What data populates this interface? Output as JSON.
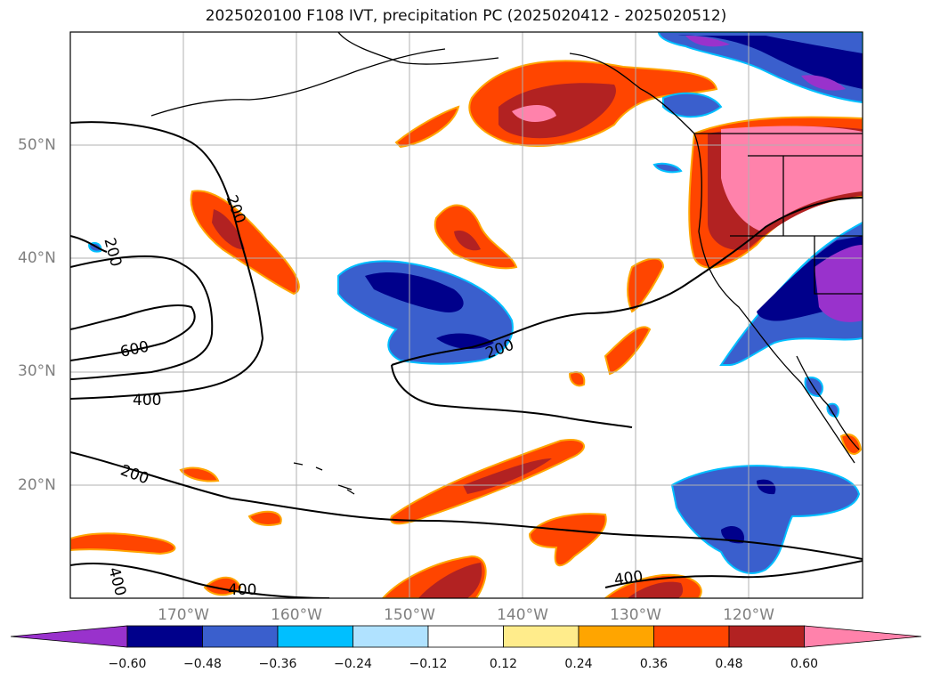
{
  "title": "2025020100 F108 IVT, precipitation PC (2025020412 - 2025020512)",
  "map": {
    "lat_labels": [
      "50°N",
      "40°N",
      "30°N",
      "20°N"
    ],
    "lon_labels": [
      "170°W",
      "160°W",
      "150°W",
      "140°W",
      "130°W",
      "120°W"
    ],
    "contour_labels": [
      "200",
      "200",
      "600",
      "400",
      "200",
      "200",
      "400",
      "400",
      "400"
    ]
  },
  "colorbar": {
    "ticks": [
      "−0.60",
      "−0.48",
      "−0.36",
      "−0.24",
      "−0.12",
      "0.12",
      "0.24",
      "0.36",
      "0.48",
      "0.60"
    ],
    "colors": [
      "#9932cc",
      "#00008b",
      "#3a5fcd",
      "#00bfff",
      "#b0e2ff",
      "#ffffff",
      "#ffec8b",
      "#ffa500",
      "#ff4500",
      "#b22222",
      "#ff82ab"
    ]
  }
}
